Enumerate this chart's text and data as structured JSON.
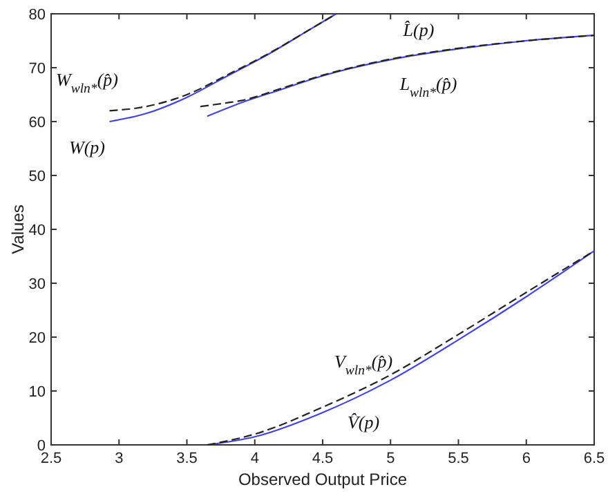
{
  "chart_data": {
    "type": "line",
    "xlabel": "Observed Output Price",
    "ylabel": "Values",
    "xlim": [
      2.5,
      6.5
    ],
    "ylim": [
      0,
      80
    ],
    "xticks": [
      2.5,
      3,
      3.5,
      4,
      4.5,
      5,
      5.5,
      6,
      6.5
    ],
    "yticks": [
      0,
      10,
      20,
      30,
      40,
      50,
      60,
      70,
      80
    ],
    "grid": false,
    "marker": "none",
    "series": [
      {
        "color": "#4444dd",
        "line_style": "solid",
        "x": [
          2.93,
          3.2,
          3.5,
          3.8,
          4.1,
          4.4,
          4.6
        ],
        "values": [
          60,
          61.5,
          64.5,
          68.5,
          72.5,
          77,
          80
        ]
      },
      {
        "color": "#222222",
        "line_style": "dashed",
        "x": [
          2.93,
          3.2,
          3.5,
          3.8,
          4.1,
          4.4,
          4.6
        ],
        "values": [
          62,
          62.8,
          65,
          68.7,
          72.6,
          77,
          80
        ]
      },
      {
        "color": "#4444dd",
        "line_style": "solid",
        "x": [
          3.65,
          3.9,
          4.2,
          4.5,
          5,
          5.5,
          6,
          6.5
        ],
        "values": [
          61,
          63.5,
          66,
          68.5,
          71.5,
          73.5,
          75,
          76
        ]
      },
      {
        "color": "#222222",
        "line_style": "dashed",
        "x": [
          3.6,
          3.8,
          3.9,
          4.2,
          4.5,
          5,
          5.5,
          6,
          6.5
        ],
        "values": [
          62.8,
          63.5,
          63.9,
          66.2,
          68.6,
          71.6,
          73.6,
          75,
          76
        ]
      },
      {
        "color": "#4444dd",
        "line_style": "solid",
        "x": [
          3.65,
          4,
          4.5,
          5,
          5.5,
          6,
          6.5
        ],
        "values": [
          0,
          1.5,
          6,
          12,
          19.5,
          27.5,
          36
        ]
      },
      {
        "color": "#222222",
        "line_style": "dashed",
        "x": [
          3.65,
          4,
          4.5,
          5,
          5.5,
          6,
          6.5
        ],
        "values": [
          0,
          2,
          7,
          13,
          20.5,
          28.3,
          36
        ]
      }
    ],
    "annotations": [
      "W$_{wln*}$(p̂)",
      "W(p)",
      "L̂(p)",
      "L$_{wln*}$(p̂)",
      "V$_{wln*}$(p̂)",
      "V̂(p)"
    ]
  }
}
